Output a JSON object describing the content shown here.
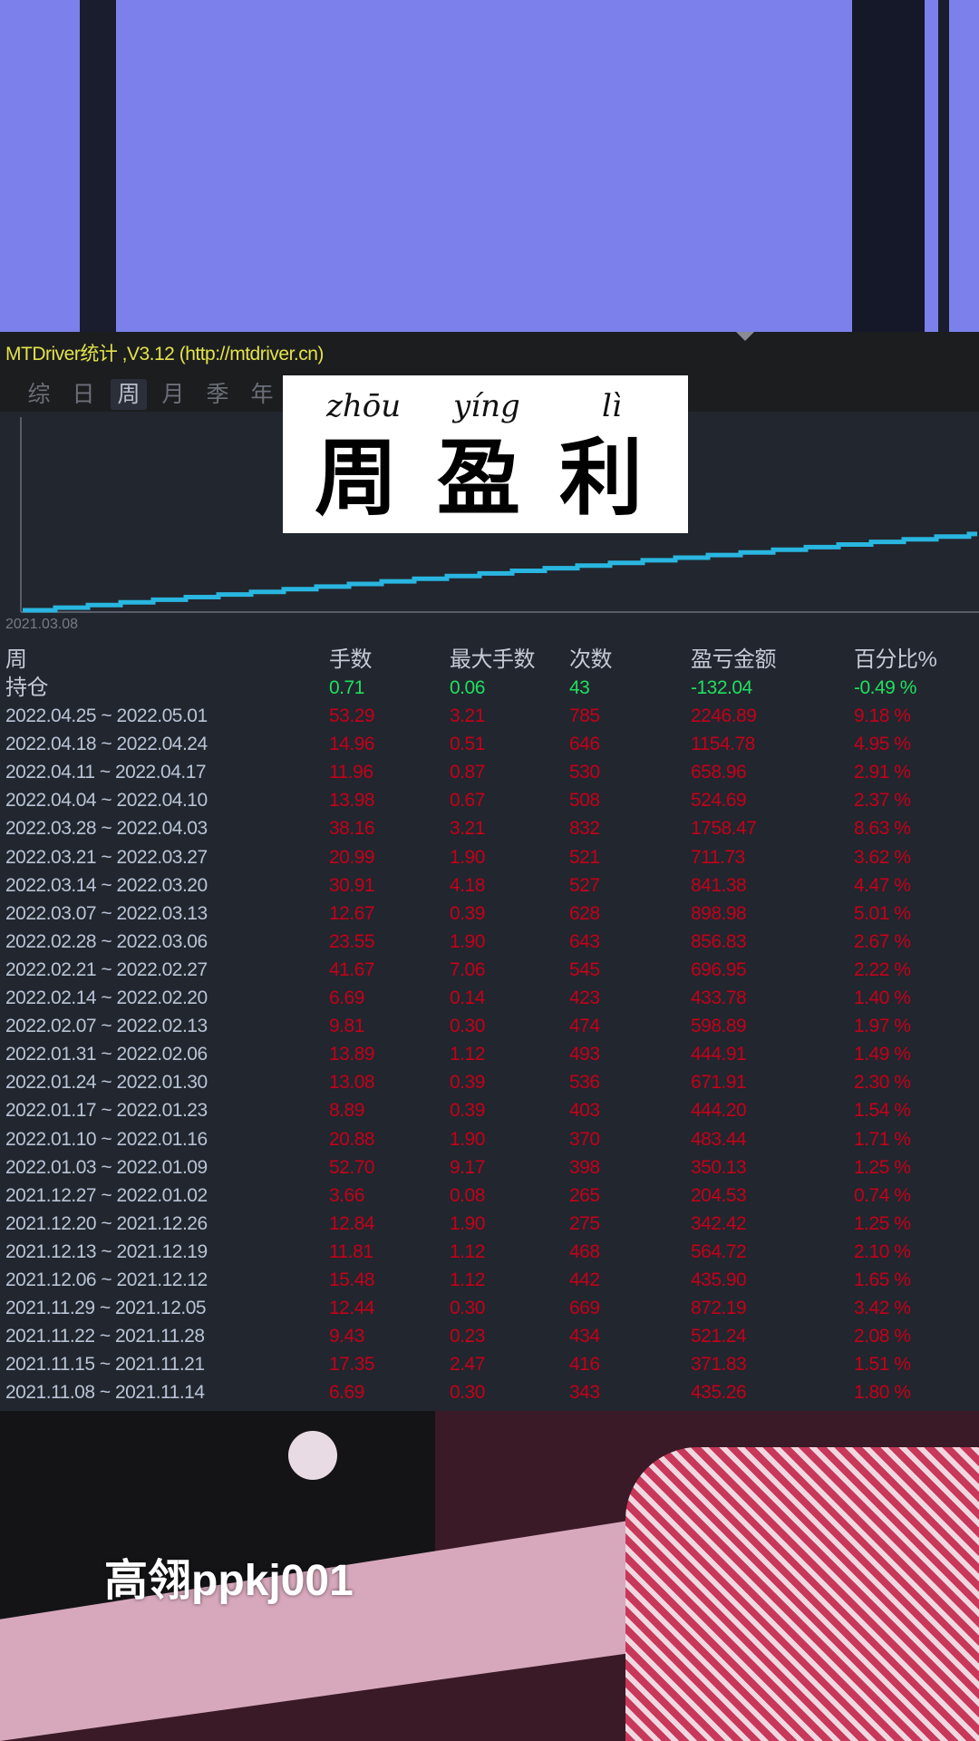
{
  "window": {
    "title": "MTDriver统计 ,V3.12 (http://mtdriver.cn)"
  },
  "tabs": [
    {
      "label": "综",
      "active": false
    },
    {
      "label": "日",
      "active": false
    },
    {
      "label": "周",
      "active": true
    },
    {
      "label": "月",
      "active": false
    },
    {
      "label": "季",
      "active": false
    },
    {
      "label": "年",
      "active": false
    }
  ],
  "chart": {
    "start_label": "2021.03.08",
    "line_color": "#29b6e0"
  },
  "overlay": {
    "pinyin": [
      "zhōu",
      "yíng",
      "lì"
    ],
    "hanzi": [
      "周",
      "盈",
      "利"
    ]
  },
  "table": {
    "headers": [
      "周",
      "手数",
      "最大手数",
      "次数",
      "盈亏金额",
      "百分比%"
    ],
    "position": {
      "label": "持仓",
      "lots": "0.71",
      "max_lots": "0.06",
      "count": "43",
      "pnl": "-132.04",
      "pct": "-0.49 %"
    },
    "rows": [
      [
        "2022.04.25 ~ 2022.05.01",
        "53.29",
        "3.21",
        "785",
        "2246.89",
        "9.18 %"
      ],
      [
        "2022.04.18 ~ 2022.04.24",
        "14.96",
        "0.51",
        "646",
        "1154.78",
        "4.95 %"
      ],
      [
        "2022.04.11 ~ 2022.04.17",
        "11.96",
        "0.87",
        "530",
        "658.96",
        "2.91 %"
      ],
      [
        "2022.04.04 ~ 2022.04.10",
        "13.98",
        "0.67",
        "508",
        "524.69",
        "2.37 %"
      ],
      [
        "2022.03.28 ~ 2022.04.03",
        "38.16",
        "3.21",
        "832",
        "1758.47",
        "8.63 %"
      ],
      [
        "2022.03.21 ~ 2022.03.27",
        "20.99",
        "1.90",
        "521",
        "711.73",
        "3.62 %"
      ],
      [
        "2022.03.14 ~ 2022.03.20",
        "30.91",
        "4.18",
        "527",
        "841.38",
        "4.47 %"
      ],
      [
        "2022.03.07 ~ 2022.03.13",
        "12.67",
        "0.39",
        "628",
        "898.98",
        "5.01 %"
      ],
      [
        "2022.02.28 ~ 2022.03.06",
        "23.55",
        "1.90",
        "643",
        "856.83",
        "2.67 %"
      ],
      [
        "2022.02.21 ~ 2022.02.27",
        "41.67",
        "7.06",
        "545",
        "696.95",
        "2.22 %"
      ],
      [
        "2022.02.14 ~ 2022.02.20",
        "6.69",
        "0.14",
        "423",
        "433.78",
        "1.40 %"
      ],
      [
        "2022.02.07 ~ 2022.02.13",
        "9.81",
        "0.30",
        "474",
        "598.89",
        "1.97 %"
      ],
      [
        "2022.01.31 ~ 2022.02.06",
        "13.89",
        "1.12",
        "493",
        "444.91",
        "1.49 %"
      ],
      [
        "2022.01.24 ~ 2022.01.30",
        "13.08",
        "0.39",
        "536",
        "671.91",
        "2.30 %"
      ],
      [
        "2022.01.17 ~ 2022.01.23",
        "8.89",
        "0.39",
        "403",
        "444.20",
        "1.54 %"
      ],
      [
        "2022.01.10 ~ 2022.01.16",
        "20.88",
        "1.90",
        "370",
        "483.44",
        "1.71 %"
      ],
      [
        "2022.01.03 ~ 2022.01.09",
        "52.70",
        "9.17",
        "398",
        "350.13",
        "1.25 %"
      ],
      [
        "2021.12.27 ~ 2022.01.02",
        "3.66",
        "0.08",
        "265",
        "204.53",
        "0.74 %"
      ],
      [
        "2021.12.20 ~ 2021.12.26",
        "12.84",
        "1.90",
        "275",
        "342.42",
        "1.25 %"
      ],
      [
        "2021.12.13 ~ 2021.12.19",
        "11.81",
        "1.12",
        "468",
        "564.72",
        "2.10 %"
      ],
      [
        "2021.12.06 ~ 2021.12.12",
        "15.48",
        "1.12",
        "442",
        "435.90",
        "1.65 %"
      ],
      [
        "2021.11.29 ~ 2021.12.05",
        "12.44",
        "0.30",
        "669",
        "872.19",
        "3.42 %"
      ],
      [
        "2021.11.22 ~ 2021.11.28",
        "9.43",
        "0.23",
        "434",
        "521.24",
        "2.08 %"
      ],
      [
        "2021.11.15 ~ 2021.11.21",
        "17.35",
        "2.47",
        "416",
        "371.83",
        "1.51 %"
      ],
      [
        "2021.11.08 ~ 2021.11.14",
        "6.69",
        "0.30",
        "343",
        "435.26",
        "1.80 %"
      ]
    ]
  },
  "watermark": "高翎ppkj001",
  "colors": {
    "title": "#e4e34a",
    "positive": "#c4001a",
    "position_values": "#1fe060",
    "background": "#22262e"
  }
}
